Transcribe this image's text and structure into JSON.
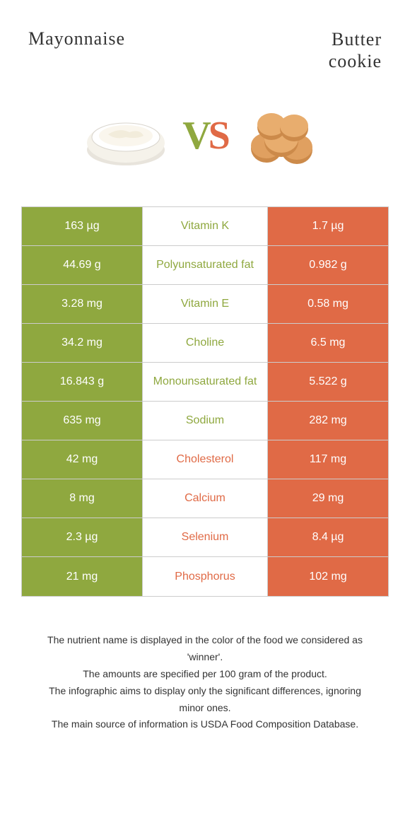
{
  "colors": {
    "left": "#8fa83f",
    "right": "#e06a46",
    "border": "#cccccc",
    "text": "#333333",
    "white": "#ffffff",
    "vs_v": "#8fa83f",
    "vs_s": "#e06a46"
  },
  "header": {
    "left_title": "Mayonnaise",
    "right_title_line1": "Butter",
    "right_title_line2": "cookie",
    "vs_v": "V",
    "vs_s": "S"
  },
  "rows": [
    {
      "left": "163 µg",
      "mid": "Vitamin K",
      "right": "1.7 µg",
      "winner": "left"
    },
    {
      "left": "44.69 g",
      "mid": "Polyunsaturated fat",
      "right": "0.982 g",
      "winner": "left"
    },
    {
      "left": "3.28 mg",
      "mid": "Vitamin E",
      "right": "0.58 mg",
      "winner": "left"
    },
    {
      "left": "34.2 mg",
      "mid": "Choline",
      "right": "6.5 mg",
      "winner": "left"
    },
    {
      "left": "16.843 g",
      "mid": "Monounsaturated fat",
      "right": "5.522 g",
      "winner": "left"
    },
    {
      "left": "635 mg",
      "mid": "Sodium",
      "right": "282 mg",
      "winner": "left"
    },
    {
      "left": "42 mg",
      "mid": "Cholesterol",
      "right": "117 mg",
      "winner": "right"
    },
    {
      "left": "8 mg",
      "mid": "Calcium",
      "right": "29 mg",
      "winner": "right"
    },
    {
      "left": "2.3 µg",
      "mid": "Selenium",
      "right": "8.4 µg",
      "winner": "right"
    },
    {
      "left": "21 mg",
      "mid": "Phosphorus",
      "right": "102 mg",
      "winner": "right"
    }
  ],
  "footer": {
    "line1": "The nutrient name is displayed in the color of the food we considered as 'winner'.",
    "line2": "The amounts are specified per 100 gram of the product.",
    "line3": "The infographic aims to display only the significant differences, ignoring minor ones.",
    "line4": "The main source of information is USDA Food Composition Database."
  }
}
